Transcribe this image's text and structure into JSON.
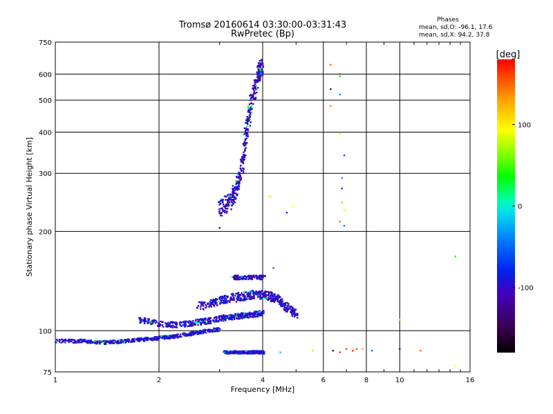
{
  "chart_data": {
    "type": "scatter",
    "title": "Tromsø 20160614 03:30:00-03:31:43",
    "subtitle": "RwPretec (Bp)",
    "xlabel": "Frequency [MHz]",
    "ylabel": "Stationary phase Virtual Height [km]",
    "x_scale": "log",
    "y_scale": "log",
    "xlim": [
      1,
      16
    ],
    "ylim": [
      75,
      750
    ],
    "x_ticks": [
      1,
      2,
      4,
      6,
      8,
      10,
      16
    ],
    "x_tick_labels": [
      "1",
      "2",
      "4",
      "6",
      "8",
      "10",
      "16"
    ],
    "y_ticks": [
      75,
      100,
      200,
      300,
      400,
      500,
      600,
      750
    ],
    "y_tick_labels": [
      "75",
      "100",
      "200",
      "300",
      "400",
      "500",
      "600",
      "750"
    ],
    "grid": true,
    "phase_box": {
      "title": "Phases",
      "line_o": "mean, sd,O: -96.1, 17.6",
      "line_x": "mean, sd,X:  94.2, 37.8"
    },
    "colorbar": {
      "label": "[deg]",
      "range": [
        -180,
        180
      ],
      "ticks": [
        100,
        0,
        -100
      ],
      "tick_labels": [
        "100",
        "0",
        "-100"
      ]
    },
    "clusters": [
      {
        "name": "",
        "type": "line",
        "x": [
          1.0,
          1.2,
          1.4,
          1.6,
          1.8,
          2.0,
          2.2,
          2.5,
          2.8,
          3.0
        ],
        "y": [
          93,
          93,
          92,
          93,
          94,
          95,
          96,
          98,
          100,
          101
        ],
        "phase": -95,
        "spread": [
          0.012,
          0.012
        ]
      },
      {
        "name": "",
        "type": "line",
        "x": [
          1.75,
          2.0,
          2.3,
          2.6,
          2.9,
          3.2,
          3.5,
          3.8,
          4.0
        ],
        "y": [
          108,
          105,
          104,
          106,
          108,
          110,
          111,
          112,
          113
        ],
        "phase": -95,
        "spread": [
          0.015,
          0.02
        ]
      },
      {
        "name": "",
        "type": "line",
        "x": [
          2.6,
          2.9,
          3.2,
          3.5,
          3.8,
          4.1,
          4.4,
          4.7,
          5.0
        ],
        "y": [
          118,
          122,
          125,
          127,
          129,
          128,
          125,
          118,
          112
        ],
        "phase": -100,
        "spread": [
          0.015,
          0.03
        ]
      },
      {
        "name": "",
        "type": "line",
        "x": [
          3.1,
          3.3,
          3.5,
          3.7,
          3.9,
          4.0
        ],
        "y": [
          86,
          86,
          86,
          86,
          86,
          86
        ],
        "phase": -90,
        "spread": [
          0.012,
          0.01
        ]
      },
      {
        "name": "",
        "type": "line",
        "x": [
          3.0,
          3.2,
          3.35,
          3.5,
          3.6,
          3.75,
          3.9,
          4.0
        ],
        "y": [
          235,
          245,
          265,
          320,
          420,
          520,
          600,
          640
        ],
        "phase": -105,
        "spread": [
          0.012,
          0.06
        ]
      },
      {
        "name": "",
        "type": "line",
        "x": [
          3.3,
          3.6,
          4.0
        ],
        "y": [
          145,
          145,
          145
        ],
        "phase": -100,
        "spread": [
          0.02,
          0.015
        ]
      }
    ],
    "sparse_points": [
      {
        "x": 6.3,
        "y": 640,
        "phase": 150
      },
      {
        "x": 6.7,
        "y": 600,
        "phase": 170
      },
      {
        "x": 6.3,
        "y": 540,
        "phase": -130
      },
      {
        "x": 6.7,
        "y": 590,
        "phase": 30
      },
      {
        "x": 6.7,
        "y": 520,
        "phase": -40
      },
      {
        "x": 6.3,
        "y": 480,
        "phase": 140
      },
      {
        "x": 6.7,
        "y": 395,
        "phase": 80
      },
      {
        "x": 6.9,
        "y": 340,
        "phase": -60
      },
      {
        "x": 6.8,
        "y": 290,
        "phase": -30
      },
      {
        "x": 6.8,
        "y": 270,
        "phase": -70
      },
      {
        "x": 6.8,
        "y": 245,
        "phase": 120
      },
      {
        "x": 6.9,
        "y": 232,
        "phase": 80
      },
      {
        "x": 6.7,
        "y": 214,
        "phase": 150
      },
      {
        "x": 6.9,
        "y": 208,
        "phase": -40
      },
      {
        "x": 4.2,
        "y": 255,
        "phase": 110
      },
      {
        "x": 4.9,
        "y": 238,
        "phase": 95
      },
      {
        "x": 4.7,
        "y": 228,
        "phase": -100
      },
      {
        "x": 3.0,
        "y": 205,
        "phase": -110
      },
      {
        "x": 14.5,
        "y": 168,
        "phase": 40
      },
      {
        "x": 4.3,
        "y": 155,
        "phase": -50
      },
      {
        "x": 7.0,
        "y": 88,
        "phase": 160
      },
      {
        "x": 7.3,
        "y": 87,
        "phase": 170
      },
      {
        "x": 7.5,
        "y": 88,
        "phase": 150
      },
      {
        "x": 7.8,
        "y": 88,
        "phase": 130
      },
      {
        "x": 8.3,
        "y": 87,
        "phase": -50
      },
      {
        "x": 6.4,
        "y": 87,
        "phase": -140
      },
      {
        "x": 6.7,
        "y": 86,
        "phase": 170
      },
      {
        "x": 5.6,
        "y": 87,
        "phase": 70
      },
      {
        "x": 4.5,
        "y": 86,
        "phase": -20
      },
      {
        "x": 10.0,
        "y": 88,
        "phase": -110
      },
      {
        "x": 11.5,
        "y": 87,
        "phase": 150
      },
      {
        "x": 14.5,
        "y": 78,
        "phase": 90
      },
      {
        "x": 10.0,
        "y": 108,
        "phase": 100
      }
    ]
  }
}
